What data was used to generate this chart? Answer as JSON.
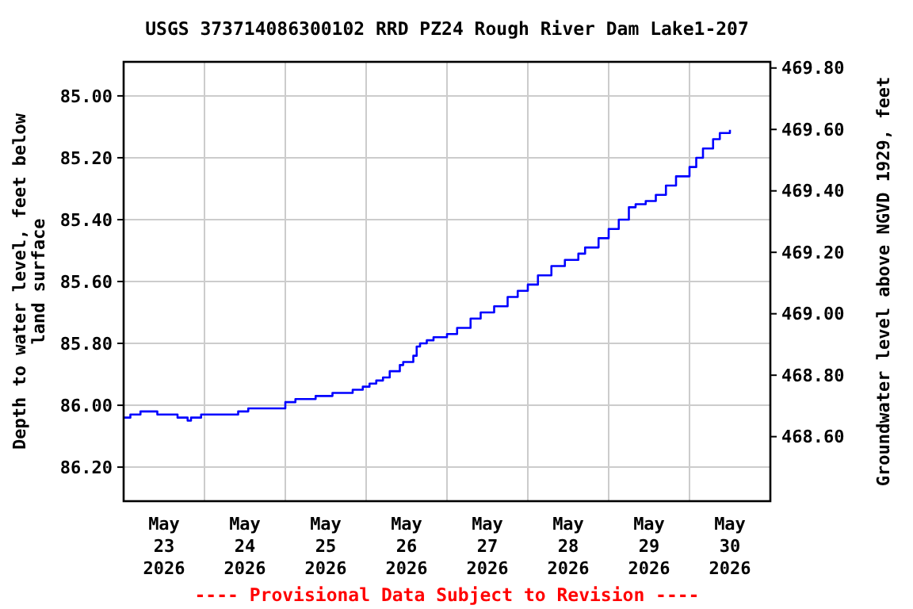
{
  "chart_data": {
    "type": "step",
    "title": "USGS 373714086300102 RRD PZ24 Rough River Dam Lake1-207",
    "ylabel": "Depth to water level, feet below land surface",
    "y2label": "Groundwater level above NGVD 1929, feet",
    "annotations": [
      "---- Provisional Data Subject to Revision ----"
    ],
    "x": [
      "2026-05-23T00:00",
      "2026-05-23T02:00",
      "2026-05-23T05:00",
      "2026-05-23T10:00",
      "2026-05-23T16:00",
      "2026-05-23T19:00",
      "2026-05-23T20:00",
      "2026-05-23T23:00",
      "2026-05-24T10:00",
      "2026-05-24T13:00",
      "2026-05-25T00:00",
      "2026-05-25T03:00",
      "2026-05-25T09:00",
      "2026-05-25T14:00",
      "2026-05-25T20:00",
      "2026-05-25T23:00",
      "2026-05-26T01:00",
      "2026-05-26T03:00",
      "2026-05-26T05:00",
      "2026-05-26T07:00",
      "2026-05-26T10:00",
      "2026-05-26T11:00",
      "2026-05-26T14:00",
      "2026-05-26T15:00",
      "2026-05-26T16:00",
      "2026-05-26T18:00",
      "2026-05-26T20:00",
      "2026-05-27T00:00",
      "2026-05-27T03:00",
      "2026-05-27T07:00",
      "2026-05-27T10:00",
      "2026-05-27T14:00",
      "2026-05-27T18:00",
      "2026-05-27T21:00",
      "2026-05-28T00:00",
      "2026-05-28T03:00",
      "2026-05-28T07:00",
      "2026-05-28T11:00",
      "2026-05-28T15:00",
      "2026-05-28T17:00",
      "2026-05-28T21:00",
      "2026-05-29T00:00",
      "2026-05-29T03:00",
      "2026-05-29T06:00",
      "2026-05-29T08:00",
      "2026-05-29T11:00",
      "2026-05-29T14:00",
      "2026-05-29T17:00",
      "2026-05-29T20:00",
      "2026-05-30T00:00",
      "2026-05-30T02:00",
      "2026-05-30T04:00",
      "2026-05-30T07:00",
      "2026-05-30T09:00",
      "2026-05-30T12:00"
    ],
    "series": [
      {
        "color": "#0000ff",
        "values": [
          86.04,
          86.03,
          86.02,
          86.03,
          86.04,
          86.05,
          86.04,
          86.03,
          86.02,
          86.01,
          85.99,
          85.98,
          85.97,
          85.96,
          85.95,
          85.94,
          85.93,
          85.92,
          85.91,
          85.89,
          85.87,
          85.86,
          85.84,
          85.81,
          85.8,
          85.79,
          85.78,
          85.77,
          85.75,
          85.72,
          85.7,
          85.68,
          85.65,
          85.63,
          85.61,
          85.58,
          85.55,
          85.53,
          85.51,
          85.49,
          85.46,
          85.43,
          85.4,
          85.36,
          85.35,
          85.34,
          85.32,
          85.29,
          85.26,
          85.23,
          85.2,
          85.17,
          85.14,
          85.12,
          85.11
        ]
      }
    ],
    "xlim": [
      "2026-05-23T00:00",
      "2026-05-31T00:00"
    ],
    "xticks": [
      {
        "value": "2026-05-23T12:00",
        "label": "May\n23\n2026"
      },
      {
        "value": "2026-05-24T00:00",
        "label": null
      },
      {
        "value": "2026-05-24T12:00",
        "label": "May\n24\n2026"
      },
      {
        "value": "2026-05-25T00:00",
        "label": null
      },
      {
        "value": "2026-05-25T12:00",
        "label": "May\n25\n2026"
      },
      {
        "value": "2026-05-26T00:00",
        "label": null
      },
      {
        "value": "2026-05-26T12:00",
        "label": "May\n26\n2026"
      },
      {
        "value": "2026-05-27T00:00",
        "label": null
      },
      {
        "value": "2026-05-27T12:00",
        "label": "May\n27\n2026"
      },
      {
        "value": "2026-05-28T00:00",
        "label": null
      },
      {
        "value": "2026-05-28T12:00",
        "label": "May\n28\n2026"
      },
      {
        "value": "2026-05-29T00:00",
        "label": null
      },
      {
        "value": "2026-05-29T12:00",
        "label": "May\n29\n2026"
      },
      {
        "value": "2026-05-30T00:00",
        "label": null
      },
      {
        "value": "2026-05-30T12:00",
        "label": "May\n30\n2026"
      }
    ],
    "ylim": [
      86.31,
      84.89
    ],
    "yticks": [
      {
        "value": 85,
        "label": "85.00"
      },
      {
        "value": 85.2,
        "label": "85.20"
      },
      {
        "value": 85.4,
        "label": "85.40"
      },
      {
        "value": 85.6,
        "label": "85.60"
      },
      {
        "value": 85.8,
        "label": "85.80"
      },
      {
        "value": 86,
        "label": "86.00"
      },
      {
        "value": 86.2,
        "label": "86.20"
      }
    ],
    "y2lim": [
      468.39,
      469.82
    ],
    "y2ticks": [
      {
        "value": 468.6,
        "label": "468.60"
      },
      {
        "value": 468.8,
        "label": "468.80"
      },
      {
        "value": 469,
        "label": "469.00"
      },
      {
        "value": 469.2,
        "label": "469.20"
      },
      {
        "value": 469.4,
        "label": "469.40"
      },
      {
        "value": 469.6,
        "label": "469.60"
      },
      {
        "value": 469.8,
        "label": "469.80"
      }
    ],
    "grid": true,
    "line_style": "solid"
  }
}
